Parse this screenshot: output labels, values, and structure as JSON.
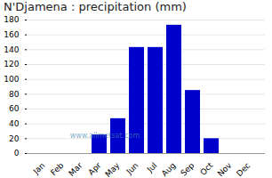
{
  "chart_data": {
    "type": "bar",
    "title": "N'Djamena : precipitation (mm)",
    "categories": [
      "Jan",
      "Feb",
      "Mar",
      "Apr",
      "May",
      "Jun",
      "Jul",
      "Aug",
      "Sep",
      "Oct",
      "Nov",
      "Dec"
    ],
    "values": [
      0,
      0,
      0,
      25,
      47,
      143,
      143,
      173,
      85,
      20,
      0,
      0
    ],
    "color": "#0000CC",
    "ylim": [
      0,
      180
    ],
    "yticks": [
      0,
      20,
      40,
      60,
      80,
      100,
      120,
      140,
      160,
      180
    ],
    "grid": true,
    "annotations": [
      "www.allmetsat.com"
    ]
  }
}
